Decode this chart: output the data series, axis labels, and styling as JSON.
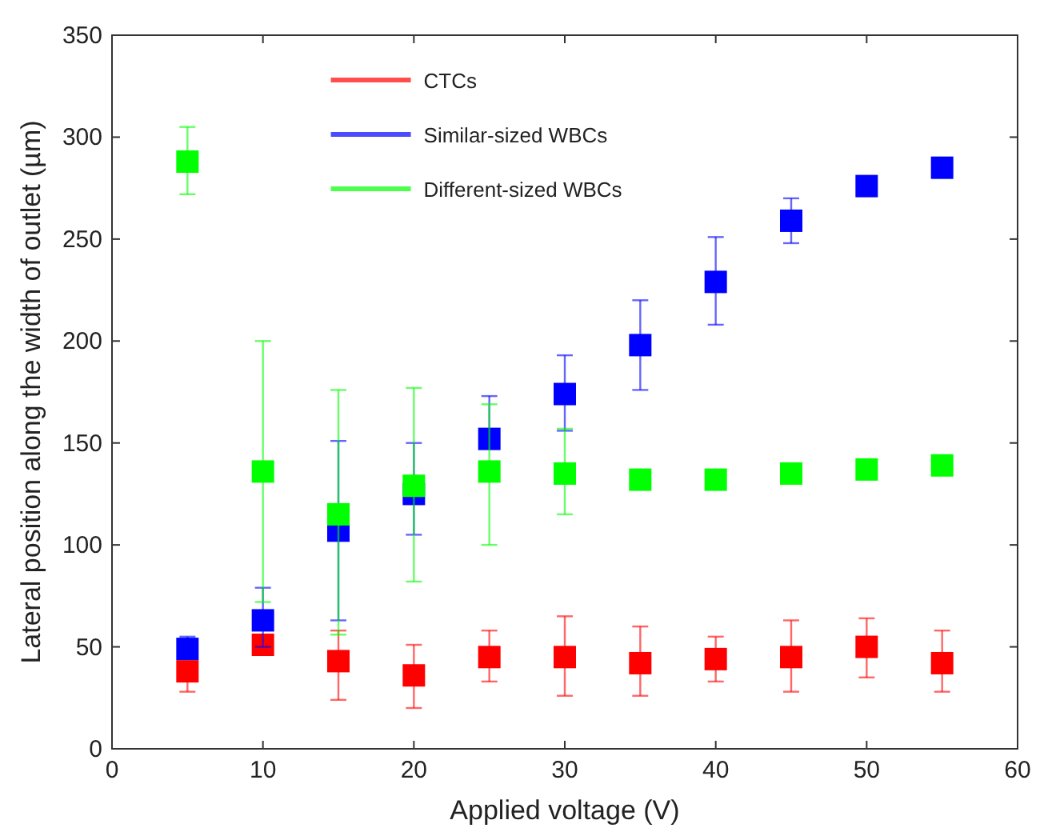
{
  "chart_data": {
    "type": "scatter",
    "xlabel": "Applied voltage (V)",
    "ylabel": "Lateral position along the width of outlet (µm)",
    "x": [
      5,
      10,
      15,
      20,
      25,
      30,
      35,
      40,
      45,
      50,
      55
    ],
    "xlim": [
      0,
      60
    ],
    "xticks": [
      0,
      10,
      20,
      30,
      40,
      50,
      60
    ],
    "ylim": [
      0,
      350
    ],
    "yticks": [
      0,
      50,
      100,
      150,
      200,
      250,
      300,
      350
    ],
    "marker": "square",
    "legend": "top",
    "grid": false,
    "series": [
      {
        "name": "CTCs",
        "color": "#ff0000",
        "values": [
          38,
          51,
          43,
          36,
          45,
          45,
          42,
          44,
          45,
          50,
          42
        ],
        "errors": [
          [
            28,
            38
          ],
          [
            48,
            55
          ],
          [
            24,
            58
          ],
          [
            20,
            51
          ],
          [
            33,
            58
          ],
          [
            26,
            65
          ],
          [
            26,
            60
          ],
          [
            33,
            55
          ],
          [
            28,
            63
          ],
          [
            35,
            64
          ],
          [
            28,
            58
          ]
        ]
      },
      {
        "name": "Similar-sized WBCs",
        "color": "#0000ff",
        "values": [
          49,
          63,
          107,
          125,
          152,
          174,
          198,
          229,
          259,
          276,
          285
        ],
        "errors": [
          [
            45,
            55
          ],
          [
            50,
            79
          ],
          [
            63,
            151
          ],
          [
            105,
            150
          ],
          [
            152,
            173
          ],
          [
            156,
            193
          ],
          [
            176,
            220
          ],
          [
            208,
            251
          ],
          [
            248,
            270
          ],
          null,
          null
        ]
      },
      {
        "name": "Different-sized WBCs",
        "color": "#00ff00",
        "values": [
          288,
          136,
          115,
          129,
          136,
          135,
          132,
          132,
          135,
          137,
          139
        ],
        "errors": [
          [
            272,
            305
          ],
          [
            72,
            200
          ],
          [
            56,
            176
          ],
          [
            82,
            177
          ],
          [
            100,
            169
          ],
          [
            115,
            157
          ],
          null,
          null,
          null,
          null,
          null
        ]
      }
    ]
  }
}
